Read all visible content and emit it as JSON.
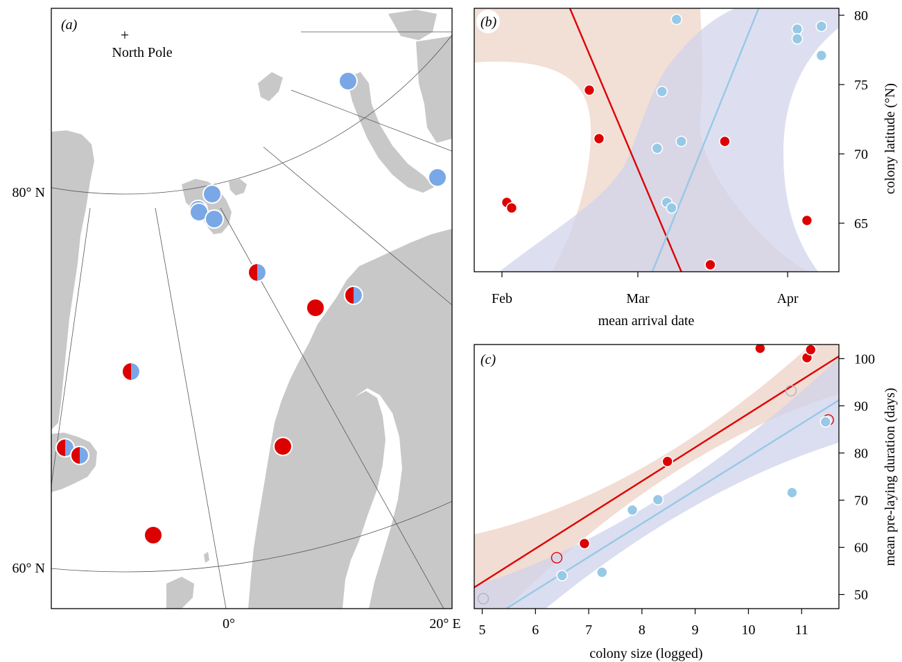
{
  "colors": {
    "red": "#dd0000",
    "blue_marker": "#7aa7e6",
    "blue_light": "#96c9e6",
    "land": "#c8c8c8",
    "band_red": "#f0d9cf",
    "band_blue": "#cfd1eb",
    "band_overlap": "#d8c6cf"
  },
  "panel_a": {
    "label": "(a)",
    "pole_label": "North Pole",
    "pole_marker": "+",
    "lat_labels": [
      "80° N",
      "60° N"
    ],
    "lon_labels": [
      "0°",
      "20° E"
    ],
    "colonies": [
      {
        "type": "blue"
      },
      {
        "type": "blue"
      },
      {
        "type": "blue"
      },
      {
        "type": "blue"
      },
      {
        "type": "blue"
      },
      {
        "type": "blue"
      },
      {
        "type": "half"
      },
      {
        "type": "half"
      },
      {
        "type": "red"
      },
      {
        "type": "half"
      },
      {
        "type": "half"
      },
      {
        "type": "half"
      },
      {
        "type": "red"
      },
      {
        "type": "red"
      }
    ]
  },
  "chart_data": [
    {
      "type": "scatter",
      "panel": "(b)",
      "xlabel": "mean arrival date",
      "ylabel": "colony latitude (°N)",
      "x_axis_type": "date",
      "x_ticks": [
        "Feb",
        "Mar",
        "Apr"
      ],
      "y_ticks": [
        65,
        70,
        75,
        80
      ],
      "ylim": [
        61.5,
        80.5
      ],
      "series": [
        {
          "color": "red",
          "points": [
            {
              "x": "2 Feb",
              "y": 66.5
            },
            {
              "x": "3 Feb",
              "y": 66.1
            },
            {
              "x": "19 Feb",
              "y": 74.6
            },
            {
              "x": "21 Feb",
              "y": 71.1
            },
            {
              "x": "5 Mar",
              "y": 70.4
            },
            {
              "x": "16 Mar",
              "y": 62.0
            },
            {
              "x": "19 Mar",
              "y": 70.9
            },
            {
              "x": "5 Apr",
              "y": 65.2
            }
          ],
          "fit": {
            "from": {
              "x": "15 Feb",
              "y": 80.5
            },
            "to": {
              "x": "10 Mar",
              "y": 61.5
            }
          }
        },
        {
          "color": "blue",
          "points": [
            {
              "x": "5 Mar",
              "y": 70.4
            },
            {
              "x": "6 Mar",
              "y": 74.5
            },
            {
              "x": "7 Mar",
              "y": 66.5
            },
            {
              "x": "8 Mar",
              "y": 66.1
            },
            {
              "x": "9 Mar",
              "y": 79.7
            },
            {
              "x": "10 Mar",
              "y": 70.9
            },
            {
              "x": "3 Apr",
              "y": 79.0
            },
            {
              "x": "3 Apr",
              "y": 78.3
            },
            {
              "x": "8 Apr",
              "y": 79.2
            },
            {
              "x": "8 Apr",
              "y": 77.1
            }
          ],
          "fit": {
            "from": {
              "x": "4 Mar",
              "y": 61.5
            },
            "to": {
              "x": "26 Mar",
              "y": 80.5
            }
          }
        }
      ]
    },
    {
      "type": "scatter",
      "panel": "(c)",
      "xlabel": "colony size (logged)",
      "ylabel": "mean pre-laying duration (days)",
      "x_ticks": [
        5,
        6,
        7,
        8,
        9,
        10,
        11
      ],
      "y_ticks": [
        50,
        60,
        70,
        80,
        90,
        100
      ],
      "xlim": [
        4.85,
        11.7
      ],
      "ylim": [
        47.0,
        103.0
      ],
      "series": [
        {
          "color": "red",
          "points": [
            {
              "x": 6.92,
              "y": 60.8
            },
            {
              "x": 8.48,
              "y": 78.2
            },
            {
              "x": 10.22,
              "y": 102.2
            },
            {
              "x": 11.1,
              "y": 100.2
            },
            {
              "x": 11.17,
              "y": 101.9
            }
          ],
          "open_points": [
            {
              "x": 6.4,
              "y": 57.8
            },
            {
              "x": 11.5,
              "y": 87.0
            }
          ],
          "fit": {
            "from": {
              "x": 4.85,
              "y": 51.5
            },
            "to": {
              "x": 11.7,
              "y": 100.5
            }
          }
        },
        {
          "color": "blue",
          "points": [
            {
              "x": 6.5,
              "y": 54.0
            },
            {
              "x": 7.25,
              "y": 54.7
            },
            {
              "x": 7.82,
              "y": 67.9
            },
            {
              "x": 8.3,
              "y": 70.1
            },
            {
              "x": 10.82,
              "y": 71.6
            },
            {
              "x": 11.45,
              "y": 86.6
            }
          ],
          "open_points": [
            {
              "x": 5.02,
              "y": 49.1
            },
            {
              "x": 10.8,
              "y": 93.2
            }
          ],
          "fit": {
            "from": {
              "x": 5.45,
              "y": 47.0
            },
            "to": {
              "x": 11.7,
              "y": 91.2
            }
          }
        }
      ]
    }
  ]
}
